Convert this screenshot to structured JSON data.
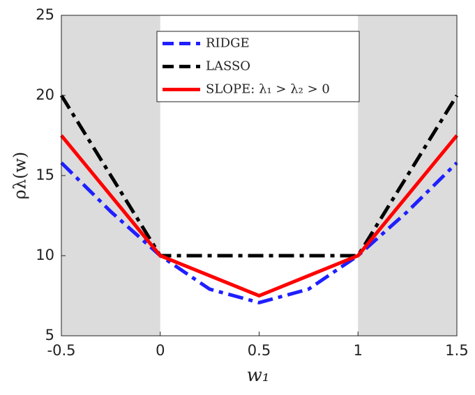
{
  "chart_data": {
    "type": "line",
    "x": [
      -0.5,
      -0.25,
      0,
      0.25,
      0.5,
      0.75,
      1,
      1.25,
      1.5
    ],
    "series": [
      {
        "name": "RIDGE",
        "color": "#1f1fff",
        "dash": "dashdot",
        "values": [
          15.8,
          12.75,
          10,
          7.91,
          7.07,
          7.91,
          10,
          12.75,
          15.8
        ]
      },
      {
        "name": "LASSO",
        "color": "#000000",
        "dash": "dashdot",
        "values": [
          20,
          15,
          10,
          10,
          10,
          10,
          10,
          15,
          20
        ]
      },
      {
        "name": "SLOPE: λ₁ > λ₂ > 0",
        "color": "#ff0000",
        "dash": "solid",
        "values": [
          17.5,
          13.75,
          10,
          8.75,
          7.5,
          8.75,
          10,
          13.75,
          17.5
        ]
      }
    ],
    "xlabel": "w₁",
    "ylabel": "ρλ(w)",
    "xlim": [
      -0.5,
      1.5
    ],
    "ylim": [
      5,
      25
    ],
    "xticks": [
      -0.5,
      0,
      0.5,
      1,
      1.5
    ],
    "yticks": [
      5,
      10,
      15,
      20,
      25
    ],
    "shaded_regions": [
      [
        -0.5,
        0
      ],
      [
        1,
        1.5
      ]
    ],
    "shade_color": "#dcdcdc",
    "grid": false,
    "legend": "top"
  }
}
